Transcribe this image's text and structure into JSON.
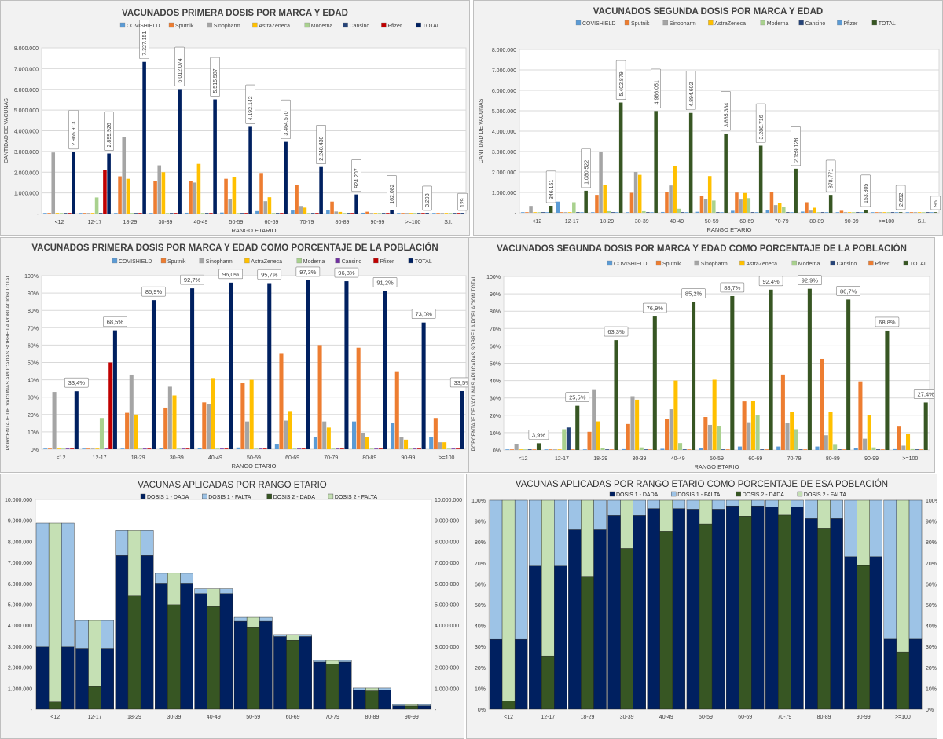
{
  "charts": {
    "p1": {
      "title": "VACUNADOS PRIMERA DOSIS POR MARCA Y EDAD",
      "xlabel": "RANGO ETARIO",
      "ylabel": "CANTIDAD DE VACUNAS"
    },
    "p2": {
      "title": "VACUNADOS SEGUNDA DOSIS POR MARCA Y EDAD",
      "xlabel": "RANGO ETARIO",
      "ylabel": "CANTIDAD DE VACUNAS"
    },
    "p3": {
      "title": "VACUNADOS PRIMERA DOSIS POR MARCA Y EDAD COMO PORCENTAJE DE LA POBLACIÓN",
      "xlabel": "RANGO ETARIO",
      "ylabel": "PORCENTAJE DE VACUNAS APLICADAS SOBRE LA POBLACIÓN TOTAL"
    },
    "p4": {
      "title": "VACUNADOS SEGUNDA DOSIS POR MARCA Y EDAD COMO PORCENTAJE DE LA POBLACIÓN",
      "xlabel": "RANGO ETARIO",
      "ylabel": "PORCENTAJE DE VACUNAS APLICADAS SOBRE LA POBLACIÓN TOTAL"
    },
    "p5": {
      "title": "VACUNAS APLICADAS POR RANGO ETARIO"
    },
    "p6": {
      "title": "VACUNAS APLICADAS POR RANGO ETARIO COMO PORCENTAJE DE ESA POBLACIÓN"
    }
  },
  "colors": {
    "COVISHIELD": "#5b9bd5",
    "Sputnik": "#ed7d31",
    "Sinopharm": "#a5a5a5",
    "AstraZeneca": "#ffc000",
    "Moderna": "#a9d18e",
    "Cansino": "#264478",
    "Pfizer": "#c00000",
    "TOTAL": "#002060",
    "TOTAL2": "#375623",
    "D1DADA": "#002060",
    "D1FALTA": "#9dc3e6",
    "D2DADA": "#375623",
    "D2FALTA": "#c5e0b4"
  },
  "chart_data": [
    {
      "id": "p1",
      "type": "bar",
      "title": "VACUNADOS PRIMERA DOSIS POR MARCA Y EDAD",
      "xlabel": "RANGO ETARIO",
      "ylabel": "CANTIDAD DE VACUNAS",
      "ylim": [
        0,
        8000000
      ],
      "yticks": [
        "-",
        "1.000.000",
        "2.000.000",
        "3.000.000",
        "4.000.000",
        "5.000.000",
        "6.000.000",
        "7.000.000",
        "8.000.000"
      ],
      "legend": "top",
      "categories": [
        "<12",
        "12-17",
        "18-29",
        "30-39",
        "40-49",
        "50-59",
        "60-69",
        "70-79",
        "80-89",
        "90-99",
        ">=100",
        "S.I."
      ],
      "series": [
        {
          "name": "COVISHIELD",
          "color": "#5b9bd5",
          "values": [
            0,
            0,
            20000,
            30000,
            40000,
            50000,
            120000,
            150000,
            180000,
            40000,
            2000,
            0
          ]
        },
        {
          "name": "Sputnik",
          "color": "#ed7d31",
          "values": [
            0,
            0,
            1800000,
            1580000,
            1560000,
            1680000,
            1960000,
            1380000,
            580000,
            90000,
            1000,
            0
          ]
        },
        {
          "name": "Sinopharm",
          "color": "#a5a5a5",
          "values": [
            2950000,
            0,
            3700000,
            2330000,
            1500000,
            700000,
            600000,
            370000,
            100000,
            20000,
            0,
            0
          ]
        },
        {
          "name": "AstraZeneca",
          "color": "#ffc000",
          "values": [
            0,
            0,
            1680000,
            2000000,
            2400000,
            1760000,
            790000,
            290000,
            80000,
            10000,
            0,
            0
          ]
        },
        {
          "name": "Moderna",
          "color": "#a9d18e",
          "values": [
            0,
            780000,
            0,
            0,
            0,
            0,
            0,
            0,
            0,
            0,
            0,
            0
          ]
        },
        {
          "name": "Cansino",
          "color": "#264478",
          "values": [
            0,
            0,
            0,
            0,
            0,
            0,
            0,
            0,
            0,
            0,
            0,
            0
          ]
        },
        {
          "name": "Pfizer",
          "color": "#c00000",
          "values": [
            0,
            2100000,
            0,
            0,
            0,
            0,
            0,
            0,
            0,
            0,
            0,
            0
          ]
        },
        {
          "name": "TOTAL",
          "color": "#002060",
          "values": [
            2965913,
            2899926,
            7327151,
            6012074,
            5515587,
            4192142,
            3464570,
            2248430,
            924207,
            162082,
            3293,
            129
          ]
        }
      ],
      "labels": [
        "2.965.913",
        "2.899.926",
        "7.327.151",
        "6.012.074",
        "5.515.587",
        "4.192.142",
        "3.464.570",
        "2.248.430",
        "924.207",
        "162.082",
        "3.293",
        "129"
      ]
    },
    {
      "id": "p2",
      "type": "bar",
      "title": "VACUNADOS SEGUNDA DOSIS POR MARCA Y EDAD",
      "xlabel": "RANGO ETARIO",
      "ylabel": "CANTIDAD DE VACUNAS",
      "ylim": [
        0,
        8000000
      ],
      "yticks": [
        "-",
        "1.000.000",
        "2.000.000",
        "3.000.000",
        "4.000.000",
        "5.000.000",
        "6.000.000",
        "7.000.000",
        "8.000.000"
      ],
      "legend": "top",
      "categories": [
        "<12",
        "12-17",
        "18-29",
        "30-39",
        "40-49",
        "50-59",
        "60-69",
        "70-79",
        "80-89",
        "90-99",
        ">=100",
        "S.I."
      ],
      "series": [
        {
          "name": "COVISHIELD",
          "color": "#5b9bd5",
          "values": [
            0,
            550000,
            20000,
            30000,
            40000,
            50000,
            100000,
            150000,
            60000,
            30000,
            1000,
            0
          ]
        },
        {
          "name": "Sputnik",
          "color": "#ed7d31",
          "values": [
            0,
            0,
            880000,
            980000,
            1000000,
            820000,
            990000,
            1020000,
            520000,
            100000,
            1000,
            0
          ]
        },
        {
          "name": "Sinopharm",
          "color": "#a5a5a5",
          "values": [
            340000,
            0,
            3000000,
            2000000,
            1340000,
            680000,
            650000,
            380000,
            110000,
            20000,
            0,
            0
          ]
        },
        {
          "name": "AstraZeneca",
          "color": "#ffc000",
          "values": [
            0,
            0,
            1380000,
            1860000,
            2280000,
            1800000,
            970000,
            500000,
            250000,
            20000,
            0,
            0
          ]
        },
        {
          "name": "Moderna",
          "color": "#a9d18e",
          "values": [
            0,
            520000,
            80000,
            80000,
            200000,
            600000,
            720000,
            300000,
            0,
            0,
            0,
            0
          ]
        },
        {
          "name": "Cansino",
          "color": "#264478",
          "values": [
            0,
            0,
            0,
            0,
            0,
            0,
            0,
            0,
            0,
            0,
            0,
            0
          ]
        },
        {
          "name": "Pfizer",
          "color": "#5b9bd5",
          "values": [
            0,
            0,
            0,
            0,
            0,
            0,
            0,
            0,
            0,
            0,
            0,
            0
          ]
        },
        {
          "name": "TOTAL",
          "color": "#375623",
          "values": [
            346151,
            1080522,
            5402879,
            4986051,
            4894602,
            3885384,
            3288716,
            2159128,
            878771,
            153305,
            2692,
            96
          ]
        }
      ],
      "labels": [
        "346.151",
        "1.080.522",
        "5.402.879",
        "4.986.051",
        "4.894.602",
        "3.885.384",
        "3.288.716",
        "2.159.128",
        "878.771",
        "153.305",
        "2.692",
        "96"
      ]
    },
    {
      "id": "p3",
      "type": "bar",
      "title": "VACUNADOS PRIMERA DOSIS POR MARCA Y EDAD COMO PORCENTAJE DE LA POBLACIÓN",
      "xlabel": "RANGO ETARIO",
      "ylabel": "PORCENTAJE DE VACUNAS APLICADAS SOBRE LA POBLACIÓN TOTAL",
      "ylim": [
        0,
        100
      ],
      "yticks": [
        "0%",
        "10%",
        "20%",
        "30%",
        "40%",
        "50%",
        "60%",
        "70%",
        "80%",
        "90%",
        "100%"
      ],
      "legend": "top",
      "categories": [
        "<12",
        "12-17",
        "18-29",
        "30-39",
        "40-49",
        "50-59",
        "60-69",
        "70-79",
        "80-89",
        "90-99",
        ">=100"
      ],
      "series": [
        {
          "name": "COVISHIELD",
          "color": "#5b9bd5",
          "values": [
            0,
            0,
            0.3,
            0.5,
            0.7,
            1.0,
            2.7,
            7.0,
            16.0,
            15.0,
            7.0
          ]
        },
        {
          "name": "Sputnik",
          "color": "#ed7d31",
          "values": [
            0,
            0,
            21.0,
            24.0,
            27.0,
            38.0,
            55.0,
            60.0,
            58.5,
            44.5,
            18.0
          ]
        },
        {
          "name": "Sinopharm",
          "color": "#a5a5a5",
          "values": [
            33.0,
            0,
            43.0,
            36.0,
            26.0,
            16.0,
            16.5,
            16.0,
            9.5,
            7.0,
            4.0
          ]
        },
        {
          "name": "AstraZeneca",
          "color": "#ffc000",
          "values": [
            0,
            0,
            20.0,
            31.0,
            41.0,
            40.0,
            22.0,
            12.5,
            7.0,
            5.5,
            4.0
          ]
        },
        {
          "name": "Moderna",
          "color": "#a9d18e",
          "values": [
            0,
            18.0,
            0,
            0,
            0,
            0,
            0,
            0,
            0,
            0,
            0
          ]
        },
        {
          "name": "Cansino",
          "color": "#7030a0",
          "values": [
            0,
            0,
            0,
            0,
            0,
            0,
            0,
            0,
            0,
            0,
            0
          ]
        },
        {
          "name": "Pfizer",
          "color": "#c00000",
          "values": [
            0,
            50.0,
            0,
            0,
            0,
            0,
            0,
            0,
            0,
            0,
            0
          ]
        },
        {
          "name": "TOTAL",
          "color": "#002060",
          "values": [
            33.4,
            68.5,
            85.9,
            92.7,
            96.0,
            95.7,
            97.3,
            96.8,
            91.2,
            73.0,
            33.5
          ]
        }
      ],
      "labels": [
        "33,4%",
        "68,5%",
        "85,9%",
        "92,7%",
        "96,0%",
        "95,7%",
        "97,3%",
        "96,8%",
        "91,2%",
        "73,0%",
        "33,5%"
      ]
    },
    {
      "id": "p4",
      "type": "bar",
      "title": "VACUNADOS SEGUNDA DOSIS POR MARCA Y EDAD COMO PORCENTAJE DE LA POBLACIÓN",
      "xlabel": "RANGO ETARIO",
      "ylabel": "PORCENTAJE DE VACUNAS APLICADAS SOBRE LA POBLACIÓN TOTAL",
      "ylim": [
        0,
        100
      ],
      "yticks": [
        "0%",
        "10%",
        "20%",
        "30%",
        "40%",
        "50%",
        "60%",
        "70%",
        "80%",
        "90%",
        "100%"
      ],
      "legend": "top",
      "categories": [
        "<12",
        "12-17",
        "18-29",
        "30-39",
        "40-49",
        "50-59",
        "60-69",
        "70-79",
        "80-89",
        "90-99",
        ">=100"
      ],
      "series": [
        {
          "name": "COVISHIELD",
          "color": "#5b9bd5",
          "values": [
            0,
            0,
            0.3,
            0.5,
            0.7,
            1.0,
            2.0,
            2.0,
            2.0,
            1.0,
            0.5
          ]
        },
        {
          "name": "Sputnik",
          "color": "#ed7d31",
          "values": [
            0,
            0,
            10.5,
            15.0,
            18.0,
            19.0,
            28.0,
            43.5,
            52.5,
            39.5,
            13.5
          ]
        },
        {
          "name": "Sinopharm",
          "color": "#a5a5a5",
          "values": [
            3.5,
            0,
            35.0,
            31.0,
            23.5,
            14.5,
            16.0,
            15.5,
            8.5,
            6.5,
            2.5
          ]
        },
        {
          "name": "AstraZeneca",
          "color": "#ffc000",
          "values": [
            0,
            0,
            16.5,
            29.0,
            40.0,
            40.5,
            28.5,
            22.0,
            22.0,
            20.0,
            9.5
          ]
        },
        {
          "name": "Moderna",
          "color": "#a9d18e",
          "values": [
            0,
            12.0,
            1.0,
            1.5,
            4.0,
            14.0,
            20.0,
            12.0,
            3.0,
            1.5,
            0.5
          ]
        },
        {
          "name": "Cansino",
          "color": "#264478",
          "values": [
            0,
            13.0,
            0,
            0,
            0,
            0,
            0,
            0,
            0,
            0,
            0
          ]
        },
        {
          "name": "Pfizer",
          "color": "#ed7d31",
          "values": [
            0,
            0,
            0,
            0,
            0,
            0,
            0,
            0,
            0,
            0,
            0
          ]
        },
        {
          "name": "TOTAL",
          "color": "#375623",
          "values": [
            3.9,
            25.5,
            63.3,
            76.9,
            85.2,
            88.7,
            92.4,
            92.9,
            86.7,
            68.8,
            27.4
          ]
        }
      ],
      "labels": [
        "3,9%",
        "25,5%",
        "63,3%",
        "76,9%",
        "85,2%",
        "88,7%",
        "92,4%",
        "92,9%",
        "86,7%",
        "68,8%",
        "27,4%"
      ]
    },
    {
      "id": "p5",
      "type": "bar",
      "title": "VACUNAS APLICADAS POR RANGO ETARIO",
      "ylim": [
        0,
        10000000
      ],
      "yticks": [
        "-",
        "1.000.000",
        "2.000.000",
        "3.000.000",
        "4.000.000",
        "5.000.000",
        "6.000.000",
        "7.000.000",
        "8.000.000",
        "9.000.000",
        "10.000.000"
      ],
      "legend": "top",
      "categories": [
        "<12",
        "12-17",
        "18-29",
        "30-39",
        "40-49",
        "50-59",
        "60-69",
        "70-79",
        "80-89",
        "90-99"
      ],
      "series": [
        {
          "name": "DOSIS 1 - DADA",
          "values": [
            2965913,
            2899926,
            7327151,
            6012074,
            5515587,
            4192142,
            3464570,
            2248430,
            924207,
            162082
          ]
        },
        {
          "name": "DOSIS 1 - FALTA",
          "values": [
            5910000,
            1330000,
            1200000,
            470000,
            230000,
            188000,
            96000,
            75000,
            89000,
            60000
          ]
        },
        {
          "name": "DOSIS 2 - DADA",
          "values": [
            346151,
            1080522,
            5402879,
            4986051,
            4894602,
            3885384,
            3288716,
            2159128,
            878771,
            153305
          ]
        },
        {
          "name": "DOSIS 2 - FALTA",
          "values": [
            8530000,
            3150000,
            3120000,
            1500000,
            850000,
            495000,
            272000,
            164000,
            134000,
            69000
          ]
        }
      ]
    },
    {
      "id": "p6",
      "type": "bar",
      "title": "VACUNAS APLICADAS POR RANGO ETARIO COMO PORCENTAJE DE ESA POBLACIÓN",
      "ylim": [
        0,
        100
      ],
      "yticks": [
        "0%",
        "10%",
        "20%",
        "30%",
        "40%",
        "50%",
        "60%",
        "70%",
        "80%",
        "90%",
        "100%"
      ],
      "legend": "top",
      "categories": [
        "<12",
        "12-17",
        "18-29",
        "30-39",
        "40-49",
        "50-59",
        "60-69",
        "70-79",
        "80-89",
        "90-99",
        ">=100"
      ],
      "series": [
        {
          "name": "DOSIS 1 - DADA",
          "values": [
            33.4,
            68.5,
            85.9,
            92.7,
            96.0,
            95.7,
            97.3,
            96.8,
            91.2,
            73.0,
            33.5
          ]
        },
        {
          "name": "DOSIS 1 - FALTA",
          "values": [
            66.6,
            31.5,
            14.1,
            7.3,
            4.0,
            4.3,
            2.7,
            3.2,
            8.8,
            27.0,
            66.5
          ]
        },
        {
          "name": "DOSIS 2 - DADA",
          "values": [
            3.9,
            25.5,
            63.3,
            76.9,
            85.2,
            88.7,
            92.4,
            92.9,
            86.7,
            68.8,
            27.4
          ]
        },
        {
          "name": "DOSIS 2 - FALTA",
          "values": [
            96.1,
            74.5,
            36.7,
            23.1,
            14.8,
            11.3,
            7.6,
            7.1,
            13.3,
            31.2,
            72.6
          ]
        }
      ]
    }
  ]
}
